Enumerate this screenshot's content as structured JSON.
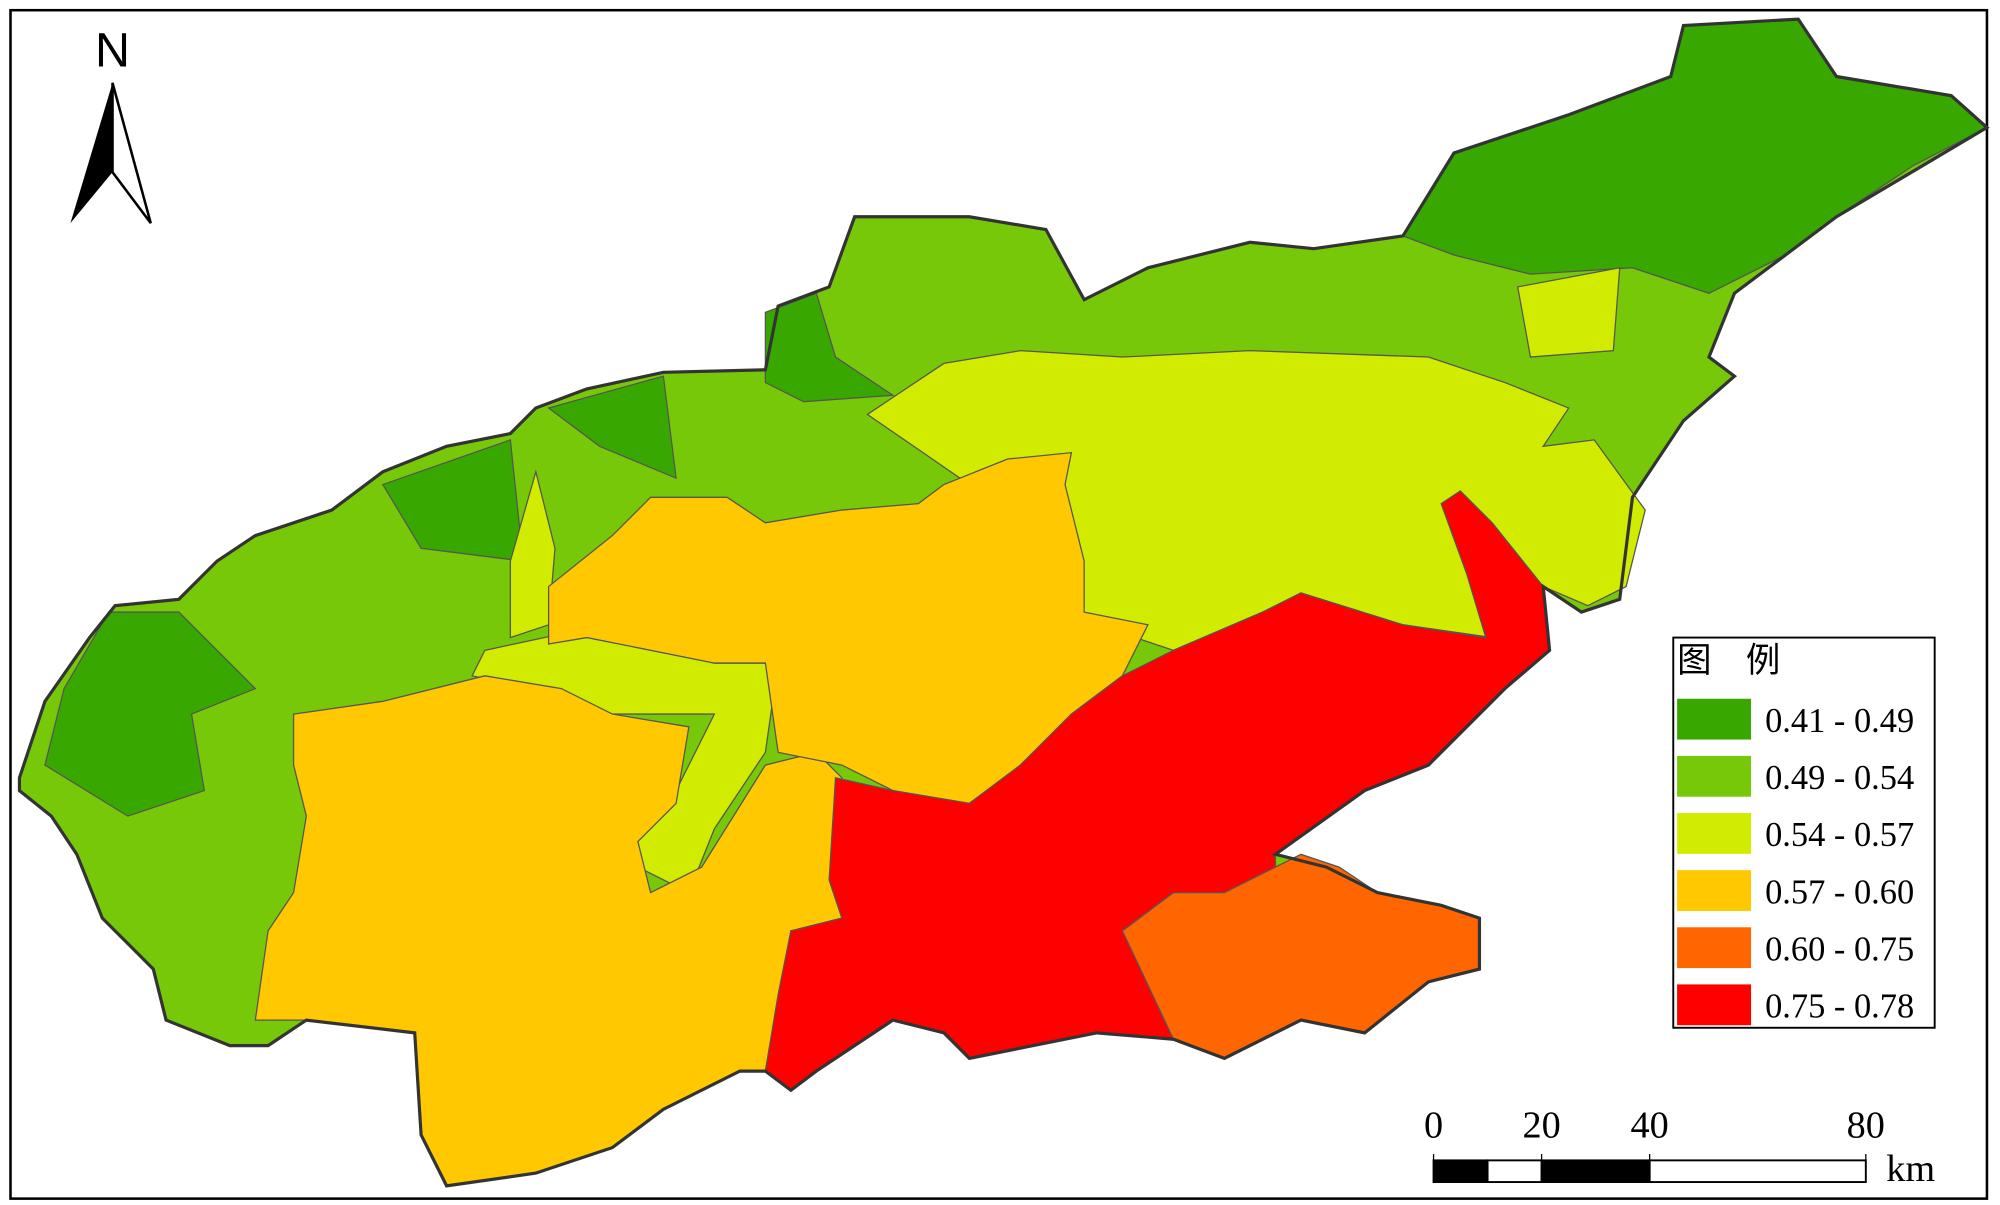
{
  "north_label": "N",
  "legend": {
    "title": "图　例",
    "classes": [
      {
        "label": "0.41 - 0.49",
        "color": "#38a800"
      },
      {
        "label": "0.49 - 0.54",
        "color": "#78c80a"
      },
      {
        "label": "0.54 - 0.57",
        "color": "#d1ec00"
      },
      {
        "label": "0.57 - 0.60",
        "color": "#ffc800"
      },
      {
        "label": "0.60 - 0.75",
        "color": "#ff6600"
      },
      {
        "label": "0.75 - 0.78",
        "color": "#ff0000"
      }
    ]
  },
  "scale_bar": {
    "ticks": [
      0,
      20,
      40,
      80
    ],
    "unit": "km"
  }
}
